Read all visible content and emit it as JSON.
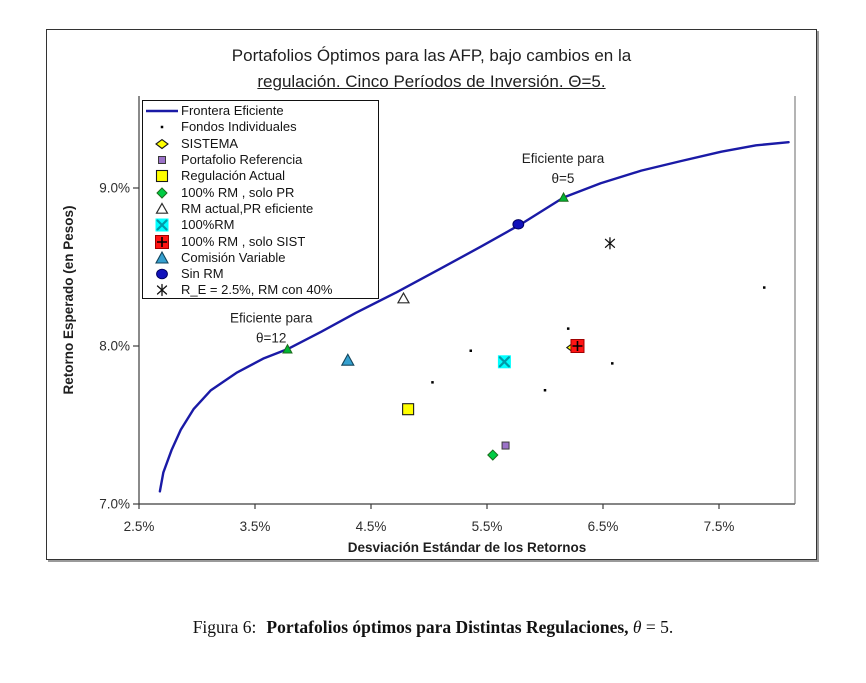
{
  "chart": {
    "title_line1": "Portafolios Óptimos para las AFP, bajo cambios en la",
    "title_line2": "regulación. Cinco Períodos de Inversión. Θ=5."
  },
  "caption": {
    "label": "Figura 6:",
    "title_bold": "Portafolios óptimos para Distintas Regulaciones,",
    "theta": "θ",
    "rest": " = 5."
  },
  "chart_data": {
    "type": "scatter",
    "title": "Portafolios Óptimos para las AFP, bajo cambios en la regulación. Cinco Períodos de Inversión. Θ=5.",
    "xlabel": "Desviación Estándar de los Retornos",
    "ylabel": "Retorno Esperado (en Pesos)",
    "xlim": [
      2.5,
      8.15
    ],
    "ylim": [
      7.0,
      9.58
    ],
    "grid": false,
    "legend_position": "top-left-inside",
    "x_ticks": [
      {
        "v": 2.5,
        "label": "2.5%"
      },
      {
        "v": 3.5,
        "label": "3.5%"
      },
      {
        "v": 4.5,
        "label": "4.5%"
      },
      {
        "v": 5.5,
        "label": "5.5%"
      },
      {
        "v": 6.5,
        "label": "6.5%"
      },
      {
        "v": 7.5,
        "label": "7.5%"
      }
    ],
    "y_ticks": [
      {
        "v": 7.0,
        "label": "7.0%"
      },
      {
        "v": 8.0,
        "label": "8.0%"
      },
      {
        "v": 9.0,
        "label": "9.0%"
      }
    ],
    "frontier": {
      "name": "Frontera Eficiente",
      "color": "#1a1aa6",
      "points": [
        [
          2.68,
          7.08
        ],
        [
          2.71,
          7.2
        ],
        [
          2.78,
          7.34
        ],
        [
          2.86,
          7.47
        ],
        [
          2.97,
          7.6
        ],
        [
          3.12,
          7.72
        ],
        [
          3.34,
          7.83
        ],
        [
          3.57,
          7.92
        ],
        [
          3.78,
          7.98
        ],
        [
          4.07,
          8.09
        ],
        [
          4.37,
          8.21
        ],
        [
          4.72,
          8.34
        ],
        [
          5.1,
          8.49
        ],
        [
          5.45,
          8.63
        ],
        [
          5.79,
          8.77
        ],
        [
          6.16,
          8.94
        ],
        [
          6.48,
          9.03
        ],
        [
          6.83,
          9.11
        ],
        [
          7.17,
          9.17
        ],
        [
          7.52,
          9.23
        ],
        [
          7.82,
          9.27
        ],
        [
          8.1,
          9.29
        ]
      ]
    },
    "frontier_markers": {
      "name": "puntos eficientes",
      "marker": "green-triangle",
      "color": "#00b535",
      "points": [
        [
          6.16,
          8.94
        ],
        [
          3.78,
          7.98
        ]
      ]
    },
    "series": [
      {
        "name": "SISTEMA",
        "marker": "sistema-diamond",
        "color": "#ffff00",
        "points": [
          [
            6.24,
            7.99
          ]
        ]
      },
      {
        "name": "Fondos Individuales",
        "marker": "dot",
        "color": "#000000",
        "points": [
          [
            6.2,
            8.11
          ],
          [
            5.36,
            7.97
          ],
          [
            6.58,
            7.89
          ],
          [
            5.03,
            7.77
          ],
          [
            6.0,
            7.72
          ],
          [
            7.89,
            8.37
          ]
        ]
      },
      {
        "name": "Portafolio Referencia",
        "marker": "purple-square",
        "color": "#9b72c8",
        "points": [
          [
            5.66,
            7.37
          ]
        ]
      },
      {
        "name": "Regulación Actual",
        "marker": "yellow-square",
        "color": "#ffff00",
        "points": [
          [
            4.82,
            7.6
          ]
        ]
      },
      {
        "name": "100% RM , solo PR",
        "marker": "green-diamond",
        "color": "#00cc44",
        "points": [
          [
            5.55,
            7.31
          ]
        ]
      },
      {
        "name": "RM actual,PR eficiente",
        "marker": "open-triangle",
        "color": "#ffffff",
        "points": [
          [
            4.78,
            8.3
          ]
        ]
      },
      {
        "name": "100%RM",
        "marker": "cyan-x-square",
        "color": "#00ffff",
        "points": [
          [
            5.65,
            7.9
          ]
        ]
      },
      {
        "name": "100% RM , solo SIST",
        "marker": "red-plus-square",
        "color": "#ff1414",
        "points": [
          [
            6.28,
            8.0
          ]
        ]
      },
      {
        "name": "Comisión Variable",
        "marker": "blue-triangle",
        "color": "#35a0cf",
        "points": [
          [
            4.3,
            7.91
          ]
        ]
      },
      {
        "name": "Sin RM",
        "marker": "navy-circle",
        "color": "#1111bb",
        "points": [
          [
            5.77,
            8.77
          ]
        ]
      },
      {
        "name": "R_E = 2.5%, RM con 40%",
        "marker": "asterisk",
        "color": "#000000",
        "points": [
          [
            6.56,
            8.65
          ]
        ]
      }
    ],
    "legend": [
      {
        "label": "Frontera Eficiente",
        "marker": "line"
      },
      {
        "label": "Fondos Individuales",
        "marker": "dot"
      },
      {
        "label": "SISTEMA",
        "marker": "sistema-diamond"
      },
      {
        "label": "Portafolio Referencia",
        "marker": "purple-square"
      },
      {
        "label": "Regulación Actual",
        "marker": "yellow-square"
      },
      {
        "label": "100% RM , solo PR",
        "marker": "green-diamond"
      },
      {
        "label": "RM actual,PR eficiente",
        "marker": "open-triangle"
      },
      {
        "label": "100%RM",
        "marker": "cyan-x-square"
      },
      {
        "label": "100% RM , solo SIST",
        "marker": "red-plus-square"
      },
      {
        "label": "Comisión Variable",
        "marker": "blue-triangle"
      },
      {
        "label": "Sin RM",
        "marker": "navy-circle"
      },
      {
        "label": "R_E = 2.5%, RM con 40%",
        "marker": "asterisk"
      }
    ],
    "annotations": [
      {
        "lines": [
          "Eficiente para",
          "θ=5"
        ],
        "x": 6.155,
        "y": 9.19
      },
      {
        "lines": [
          "Eficiente para",
          "θ=12"
        ],
        "x": 3.64,
        "y": 8.18
      }
    ]
  }
}
